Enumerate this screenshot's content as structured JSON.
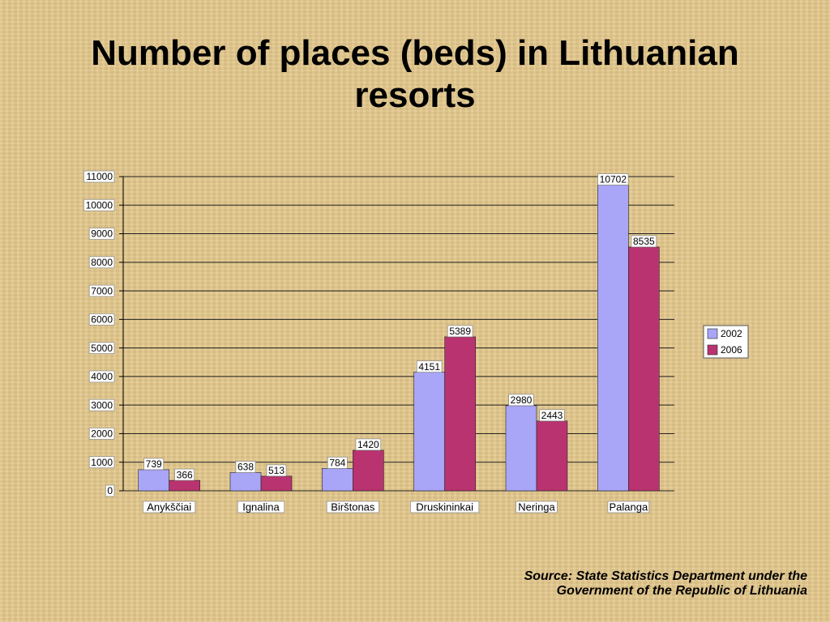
{
  "chart_data": {
    "type": "bar",
    "title": "Number of places (beds) in Lithuanian resorts",
    "categories": [
      "Anykščiai",
      "Ignalina",
      "Birštonas",
      "Druskininkai",
      "Neringa",
      "Palanga"
    ],
    "series": [
      {
        "name": "2002",
        "color": "#a9a5f7",
        "values": [
          739,
          638,
          784,
          4151,
          2980,
          10702
        ]
      },
      {
        "name": "2006",
        "color": "#b8336f",
        "values": [
          366,
          513,
          1420,
          5389,
          2443,
          8535
        ]
      }
    ],
    "ylim": [
      0,
      11000
    ],
    "yticks": [
      0,
      1000,
      2000,
      3000,
      4000,
      5000,
      6000,
      7000,
      8000,
      9000,
      10000,
      11000
    ],
    "grid": true,
    "legend": "right",
    "source": "Source: State Statistics Department under the Government of the Republic of Lithuania"
  }
}
